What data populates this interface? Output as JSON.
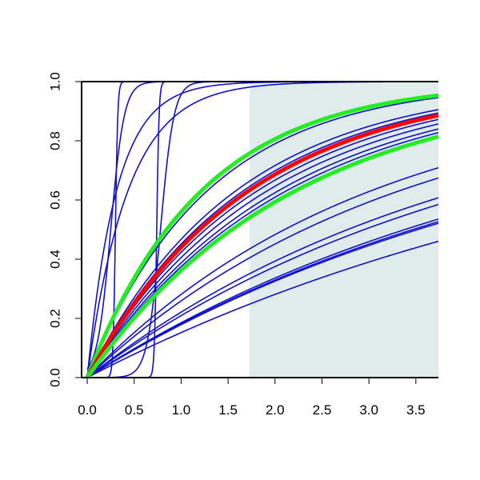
{
  "chart_data": {
    "type": "line",
    "title": "",
    "xlabel": "",
    "ylabel": "",
    "xlim": [
      -0.06,
      3.74
    ],
    "ylim": [
      0,
      1
    ],
    "x_ticks": [
      "0.0",
      "0.5",
      "1.0",
      "1.5",
      "2.0",
      "2.5",
      "3.0",
      "3.5"
    ],
    "y_ticks": [
      "0.0",
      "0.2",
      "0.4",
      "0.6",
      "0.8",
      "1.0"
    ],
    "shaded_region": {
      "x_from": 1.73,
      "x_to": 3.74,
      "color": "#e0ecec"
    },
    "grid": false,
    "legend": "none",
    "colors": {
      "blue": "#1010d0",
      "red": "#ff0000",
      "green": "#22ee22",
      "shade": "#e0ecec"
    },
    "series": [
      {
        "color": "blue",
        "kind": "step",
        "at": 0.3,
        "sharpness": 80
      },
      {
        "color": "blue",
        "kind": "step",
        "at": 0.74,
        "sharpness": 80
      },
      {
        "color": "blue",
        "kind": "exp",
        "rate": 3.2
      },
      {
        "color": "blue",
        "kind": "exp",
        "rate": 2.3
      },
      {
        "color": "blue",
        "kind": "step",
        "at": 0.25,
        "sharpness": 14
      },
      {
        "color": "blue",
        "kind": "step",
        "at": 0.78,
        "sharpness": 14
      },
      {
        "color": "green",
        "kind": "exp",
        "rate": 0.82,
        "width": 5
      },
      {
        "color": "red",
        "kind": "exp",
        "rate": 0.58,
        "width": 5
      },
      {
        "color": "green",
        "kind": "exp",
        "rate": 0.45,
        "width": 5
      },
      {
        "color": "blue",
        "kind": "exp",
        "rate": 0.78
      },
      {
        "color": "blue",
        "kind": "exp",
        "rate": 0.63
      },
      {
        "color": "blue",
        "kind": "exp",
        "rate": 0.6
      },
      {
        "color": "blue",
        "kind": "exp",
        "rate": 0.55
      },
      {
        "color": "blue",
        "kind": "exp",
        "rate": 0.52
      },
      {
        "color": "blue",
        "kind": "exp",
        "rate": 0.49
      },
      {
        "color": "blue",
        "kind": "exp",
        "rate": 0.47
      },
      {
        "color": "blue",
        "kind": "exp",
        "rate": 0.33
      },
      {
        "color": "blue",
        "kind": "exp",
        "rate": 0.3
      },
      {
        "color": "blue",
        "kind": "exp",
        "rate": 0.25
      },
      {
        "color": "blue",
        "kind": "exp",
        "rate": 0.235
      },
      {
        "color": "blue",
        "kind": "exp",
        "rate": 0.205
      },
      {
        "color": "blue",
        "kind": "exp",
        "rate": 0.2
      },
      {
        "color": "blue",
        "kind": "exp",
        "rate": 0.197
      },
      {
        "color": "blue",
        "kind": "exp",
        "rate": 0.165
      }
    ]
  }
}
